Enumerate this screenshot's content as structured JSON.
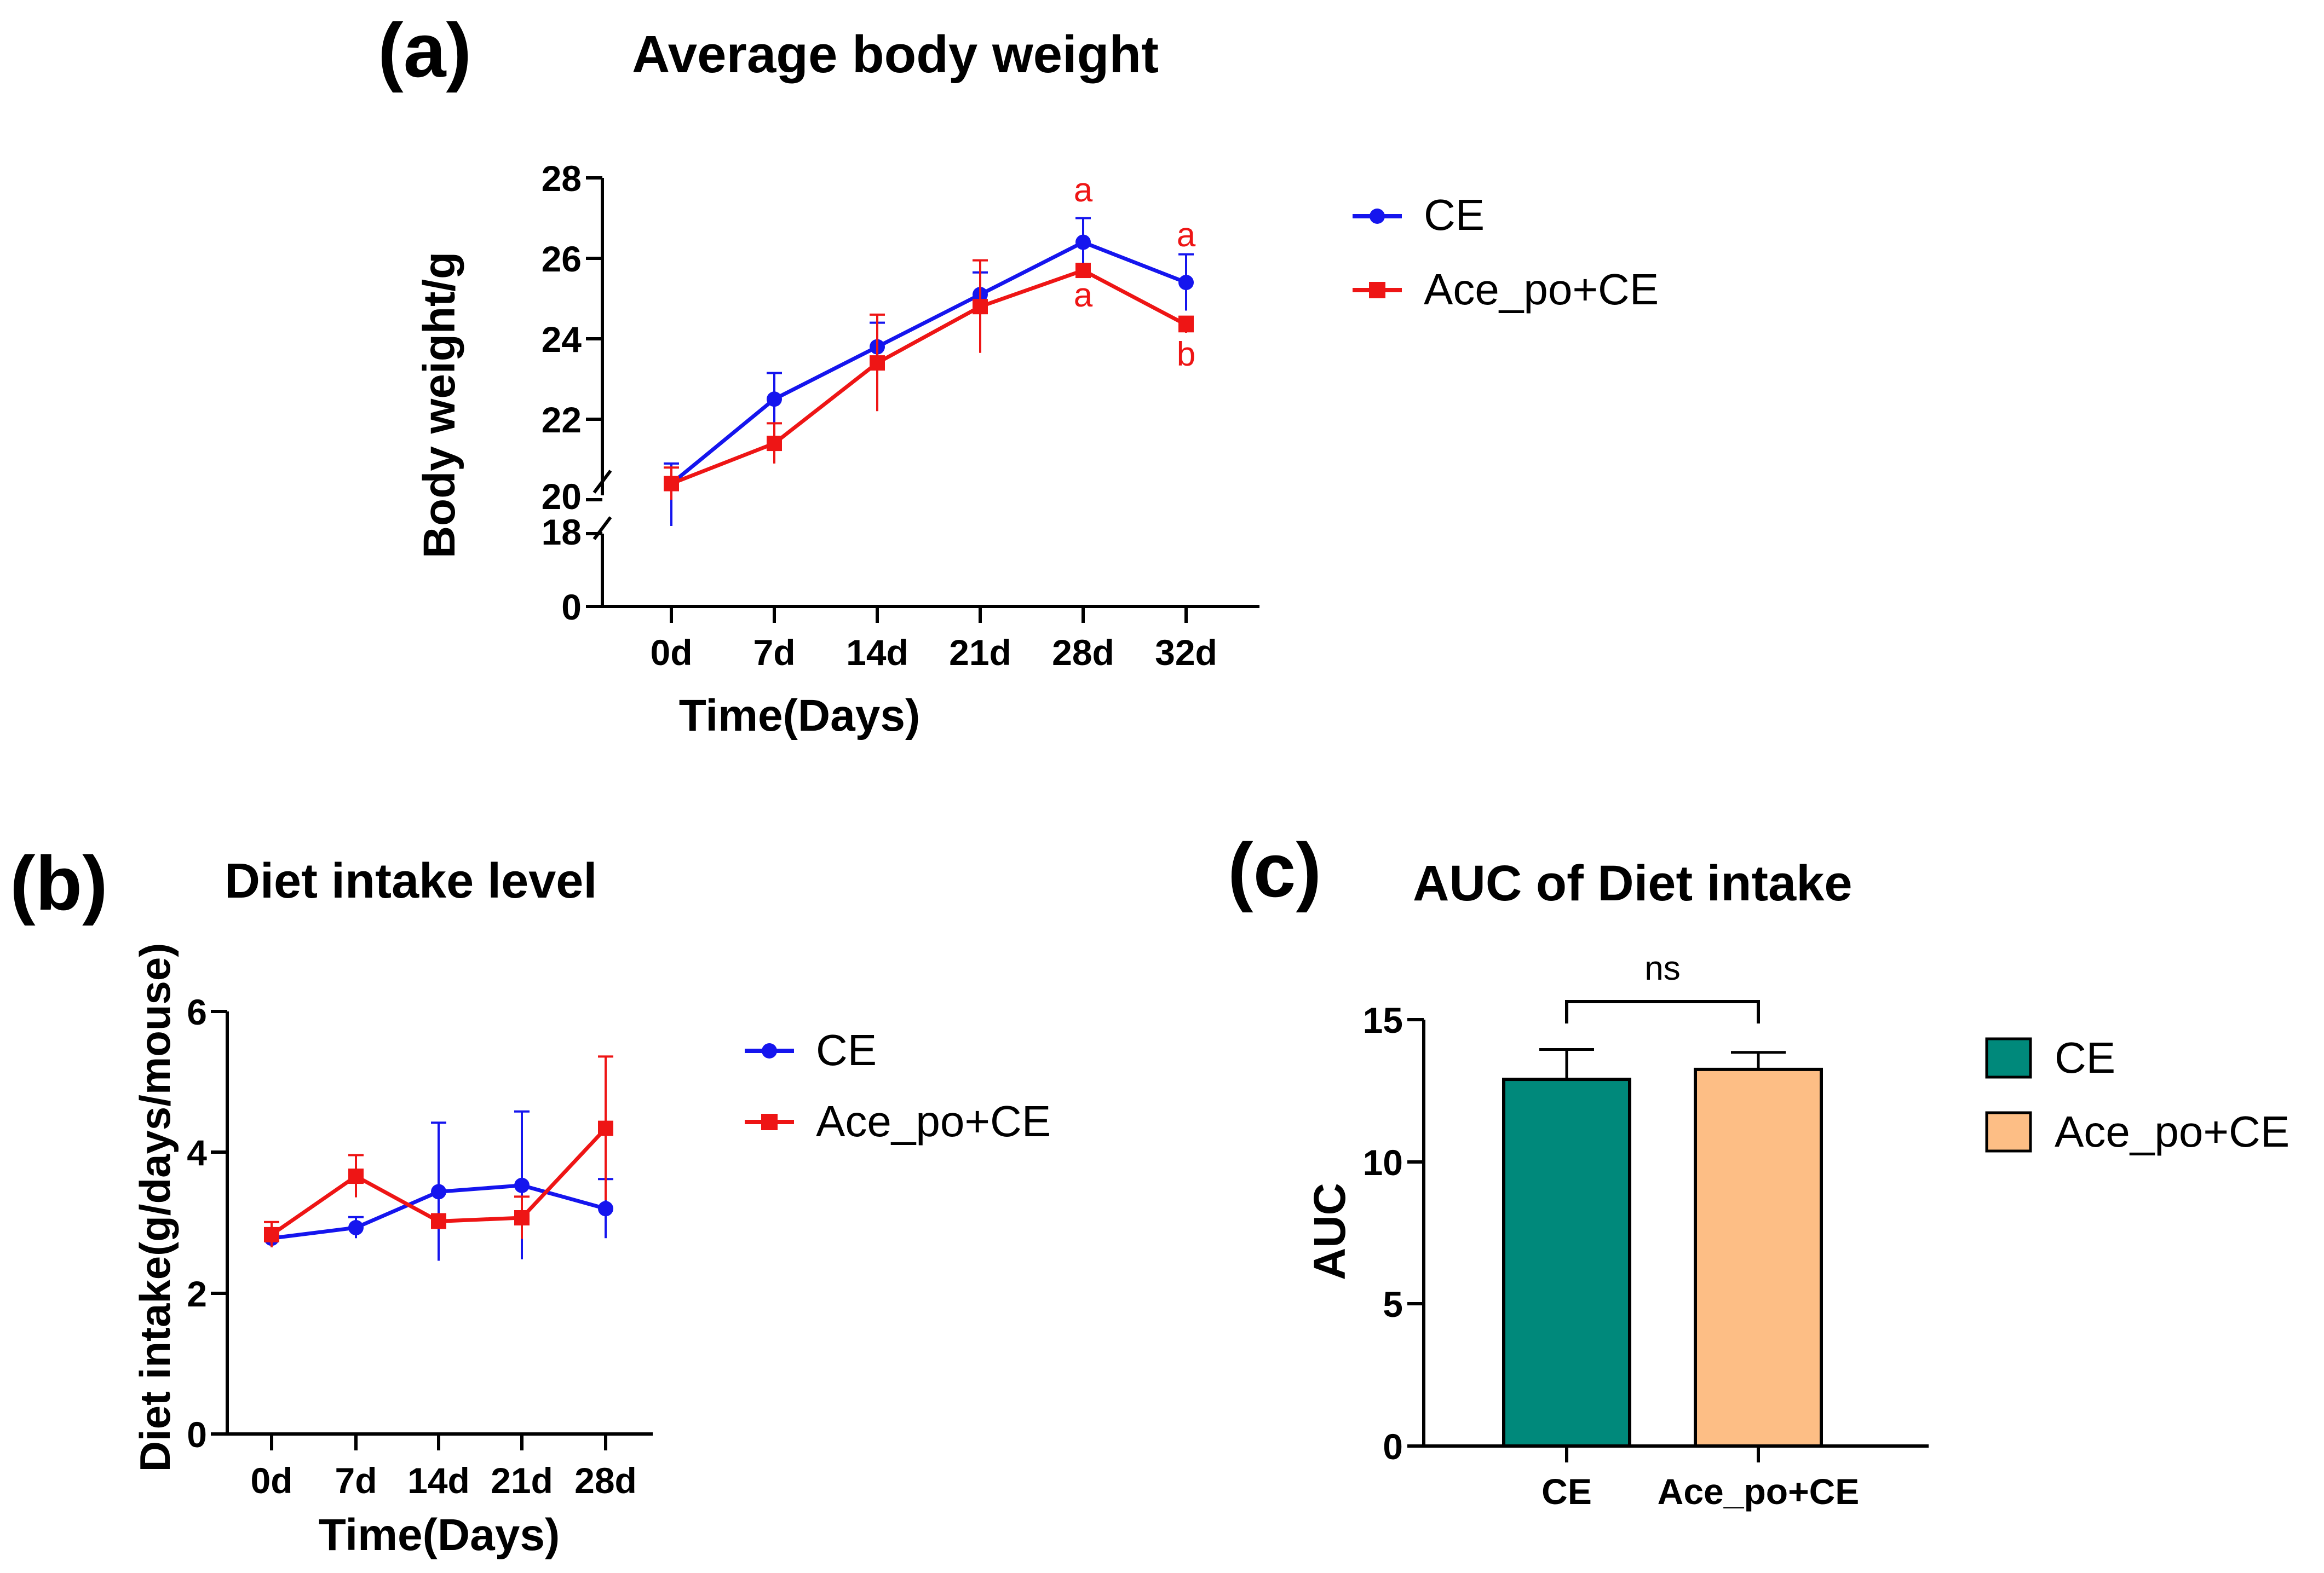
{
  "colors": {
    "ce_line": "#1515ee",
    "ace_line": "#ee1515",
    "ce_bar": "#00897b",
    "ace_bar": "#fdbe85",
    "axis": "#000000",
    "letter": "#ee1515"
  },
  "chart_data": [
    {
      "panel": "(a)",
      "type": "line",
      "title": "Average body weight",
      "xlabel": "Time(Days)",
      "ylabel": "Body weight/g",
      "categories": [
        "0d",
        "7d",
        "14d",
        "21d",
        "28d",
        "32d"
      ],
      "y_ticks": [
        "28",
        "26",
        "24",
        "22",
        "20",
        "18",
        "0"
      ],
      "y_axis_break": "between 18 and 20",
      "ylim_upper_segment": [
        20,
        28
      ],
      "ylim_lower_segment": [
        0,
        18
      ],
      "series": [
        {
          "name": "CE",
          "values": [
            20.4,
            22.5,
            23.8,
            25.1,
            26.4,
            25.4
          ],
          "errors": [
            0.5,
            0.65,
            0.6,
            0.55,
            0.6,
            0.7
          ]
        },
        {
          "name": "Ace_po+CE",
          "values": [
            20.4,
            21.4,
            23.4,
            24.8,
            25.7,
            24.35
          ],
          "errors": [
            0.4,
            0.5,
            1.2,
            1.15,
            0.15,
            0.2
          ]
        }
      ],
      "annotations": [
        {
          "text": "a",
          "category": "28d",
          "position": "above"
        },
        {
          "text": "a",
          "category": "28d",
          "position": "below"
        },
        {
          "text": "a",
          "category": "32d",
          "position": "above"
        },
        {
          "text": "b",
          "category": "32d",
          "position": "below"
        }
      ],
      "legend": [
        "CE",
        "Ace_po+CE"
      ]
    },
    {
      "panel": "(b)",
      "type": "line",
      "title": "Diet intake level",
      "xlabel": "Time(Days)",
      "ylabel": "Diet intake(g/days/mouse)",
      "categories": [
        "0d",
        "7d",
        "14d",
        "21d",
        "28d"
      ],
      "y_ticks": [
        "6",
        "4",
        "2",
        "0"
      ],
      "ylim": [
        0,
        6
      ],
      "series": [
        {
          "name": "CE",
          "values": [
            2.78,
            2.93,
            3.44,
            3.53,
            3.2
          ],
          "errors": [
            0.1,
            0.15,
            0.98,
            1.05,
            0.42
          ]
        },
        {
          "name": "Ace_po+CE",
          "values": [
            2.83,
            3.66,
            3.02,
            3.07,
            4.34
          ],
          "errors": [
            0.18,
            0.3,
            0.1,
            0.3,
            1.02
          ]
        }
      ],
      "legend": [
        "CE",
        "Ace_po+CE"
      ]
    },
    {
      "panel": "(c)",
      "type": "bar",
      "title": "AUC of Diet intake",
      "xlabel": "",
      "ylabel": "AUC",
      "categories": [
        "CE",
        "Ace_po+CE"
      ],
      "values": [
        12.9,
        13.25
      ],
      "errors": [
        1.05,
        0.6
      ],
      "y_ticks": [
        "15",
        "10",
        "5",
        "0"
      ],
      "ylim": [
        0,
        15
      ],
      "significance": "ns",
      "legend": [
        "CE",
        "Ace_po+CE"
      ]
    }
  ]
}
